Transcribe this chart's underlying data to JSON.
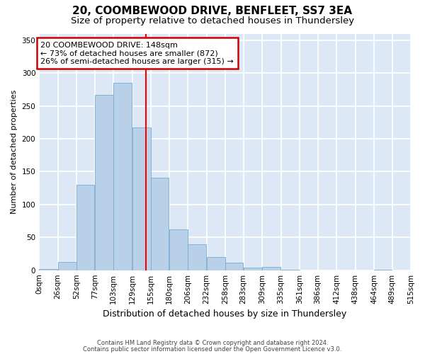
{
  "title1": "20, COOMBEWOOD DRIVE, BENFLEET, SS7 3EA",
  "title2": "Size of property relative to detached houses in Thundersley",
  "xlabel": "Distribution of detached houses by size in Thundersley",
  "ylabel": "Number of detached properties",
  "footnote1": "Contains HM Land Registry data © Crown copyright and database right 2024.",
  "footnote2": "Contains public sector information licensed under the Open Government Licence v3.0.",
  "annotation_line1": "20 COOMBEWOOD DRIVE: 148sqm",
  "annotation_line2": "← 73% of detached houses are smaller (872)",
  "annotation_line3": "26% of semi-detached houses are larger (315) →",
  "property_size": 148,
  "bin_edges": [
    0,
    26,
    52,
    77,
    103,
    129,
    155,
    180,
    206,
    232,
    258,
    283,
    309,
    335,
    361,
    386,
    412,
    438,
    464,
    489,
    515
  ],
  "bar_heights": [
    2,
    13,
    130,
    267,
    285,
    217,
    141,
    62,
    39,
    20,
    12,
    4,
    5,
    1,
    0,
    0,
    0,
    0,
    1,
    0
  ],
  "bar_color": "#b8d0e8",
  "bar_edge_color": "#7aaad0",
  "vline_color": "#ff0000",
  "annotation_box_edge": "#cc0000",
  "fig_bg_color": "#ffffff",
  "plot_bg_color": "#dce8f5",
  "ylim": [
    0,
    360
  ],
  "yticks": [
    0,
    50,
    100,
    150,
    200,
    250,
    300,
    350
  ],
  "grid_color": "#ffffff",
  "title1_fontsize": 11,
  "title2_fontsize": 9.5,
  "xlabel_fontsize": 9,
  "ylabel_fontsize": 8,
  "tick_fontsize": 7.5,
  "annot_fontsize": 8,
  "footnote_fontsize": 6
}
